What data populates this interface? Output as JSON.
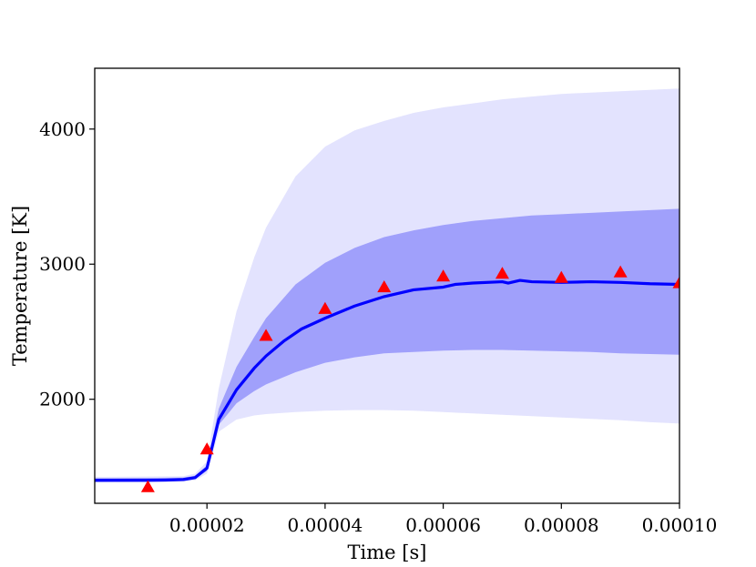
{
  "chart_data": {
    "type": "line",
    "title": "",
    "xlabel": "Time [s]",
    "ylabel": "Temperature [K]",
    "xlim": [
      1e-06,
      0.0001
    ],
    "ylim": [
      1230,
      4450
    ],
    "x_ticks": [
      {
        "value": 2e-05,
        "label": "0.00002"
      },
      {
        "value": 4e-05,
        "label": "0.00004"
      },
      {
        "value": 6e-05,
        "label": "0.00006"
      },
      {
        "value": 8e-05,
        "label": "0.00008"
      },
      {
        "value": 0.0001,
        "label": "0.00010"
      }
    ],
    "y_ticks": [
      {
        "value": 2000,
        "label": "2000"
      },
      {
        "value": 3000,
        "label": "3000"
      },
      {
        "value": 4000,
        "label": "4000"
      }
    ],
    "grid": false,
    "colors": {
      "mean_line": "#0000ff",
      "inner_band": "#a0a0fb",
      "outer_band": "#e3e3fe",
      "markers": "#ff0000"
    },
    "mean": {
      "x": [
        1e-06,
        5e-06,
        1e-05,
        1.3e-05,
        1.6e-05,
        1.8e-05,
        2e-05,
        2.2e-05,
        2.5e-05,
        2.8e-05,
        3e-05,
        3.3e-05,
        3.6e-05,
        4e-05,
        4.5e-05,
        5e-05,
        5.5e-05,
        6e-05,
        6.2e-05,
        6.5e-05,
        7e-05,
        7.1e-05,
        7.3e-05,
        7.5e-05,
        8e-05,
        8.5e-05,
        9e-05,
        9.5e-05,
        0.0001
      ],
      "y": [
        1400,
        1400,
        1400,
        1402,
        1406,
        1420,
        1490,
        1850,
        2070,
        2230,
        2320,
        2430,
        2520,
        2600,
        2690,
        2760,
        2810,
        2830,
        2850,
        2860,
        2870,
        2860,
        2880,
        2870,
        2865,
        2870,
        2865,
        2855,
        2850
      ]
    },
    "inner_band": {
      "x": [
        1e-06,
        1.6e-05,
        1.8e-05,
        2e-05,
        2.2e-05,
        2.5e-05,
        2.8e-05,
        3e-05,
        3.5e-05,
        4e-05,
        4.5e-05,
        5e-05,
        5.5e-05,
        6e-05,
        6.5e-05,
        7e-05,
        7.5e-05,
        8e-05,
        8.5e-05,
        9e-05,
        9.5e-05,
        0.0001
      ],
      "lower": [
        1390,
        1395,
        1410,
        1470,
        1810,
        1970,
        2060,
        2110,
        2200,
        2270,
        2310,
        2340,
        2350,
        2360,
        2365,
        2365,
        2360,
        2355,
        2350,
        2340,
        2335,
        2330
      ],
      "upper": [
        1415,
        1420,
        1435,
        1510,
        1930,
        2240,
        2460,
        2600,
        2850,
        3010,
        3120,
        3200,
        3250,
        3290,
        3320,
        3340,
        3360,
        3370,
        3380,
        3390,
        3400,
        3410
      ]
    },
    "outer_band": {
      "x": [
        1e-06,
        1.6e-05,
        1.8e-05,
        2e-05,
        2.2e-05,
        2.5e-05,
        2.8e-05,
        3e-05,
        3.5e-05,
        4e-05,
        4.5e-05,
        5e-05,
        5.5e-05,
        6e-05,
        6.5e-05,
        7e-05,
        7.5e-05,
        8e-05,
        8.5e-05,
        9e-05,
        9.5e-05,
        0.0001
      ],
      "lower": [
        1385,
        1390,
        1400,
        1450,
        1760,
        1850,
        1880,
        1890,
        1905,
        1915,
        1920,
        1920,
        1915,
        1905,
        1895,
        1885,
        1875,
        1865,
        1855,
        1845,
        1830,
        1820
      ],
      "upper": [
        1425,
        1430,
        1450,
        1540,
        2080,
        2650,
        3050,
        3270,
        3650,
        3870,
        3990,
        4060,
        4120,
        4160,
        4190,
        4220,
        4240,
        4260,
        4270,
        4280,
        4290,
        4300
      ]
    },
    "markers": {
      "x": [
        1e-05,
        2e-05,
        3e-05,
        4e-05,
        5e-05,
        6e-05,
        7e-05,
        8e-05,
        9e-05,
        0.0001
      ],
      "y": [
        1350,
        1630,
        2470,
        2670,
        2830,
        2910,
        2930,
        2900,
        2940,
        2860
      ]
    }
  }
}
